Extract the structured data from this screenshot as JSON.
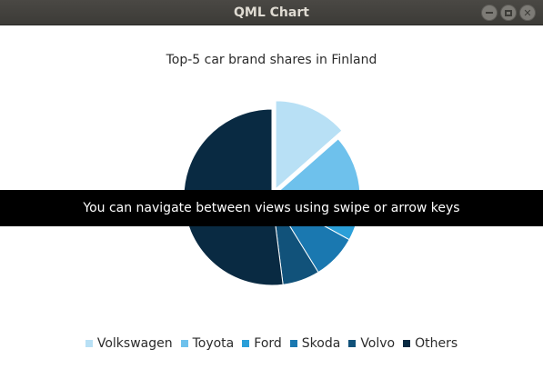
{
  "window": {
    "title": "QML Chart"
  },
  "banner": {
    "text": "You can navigate between views using swipe or arrow keys"
  },
  "chart_data": {
    "type": "pie",
    "title": "Top-5 car brand shares in Finland",
    "series": [
      {
        "values": [
          13.5,
          10.9,
          8.6,
          8.2,
          6.8,
          52.0
        ]
      }
    ],
    "categories": [
      "Volkswagen",
      "Toyota",
      "Ford",
      "Skoda",
      "Volvo",
      "Others"
    ],
    "colors": [
      "#b8e0f5",
      "#6ec1ec",
      "#2b9fd8",
      "#1a78b0",
      "#11527a",
      "#092a42"
    ],
    "exploded": [
      "Volkswagen"
    ],
    "legend": "bottom"
  }
}
